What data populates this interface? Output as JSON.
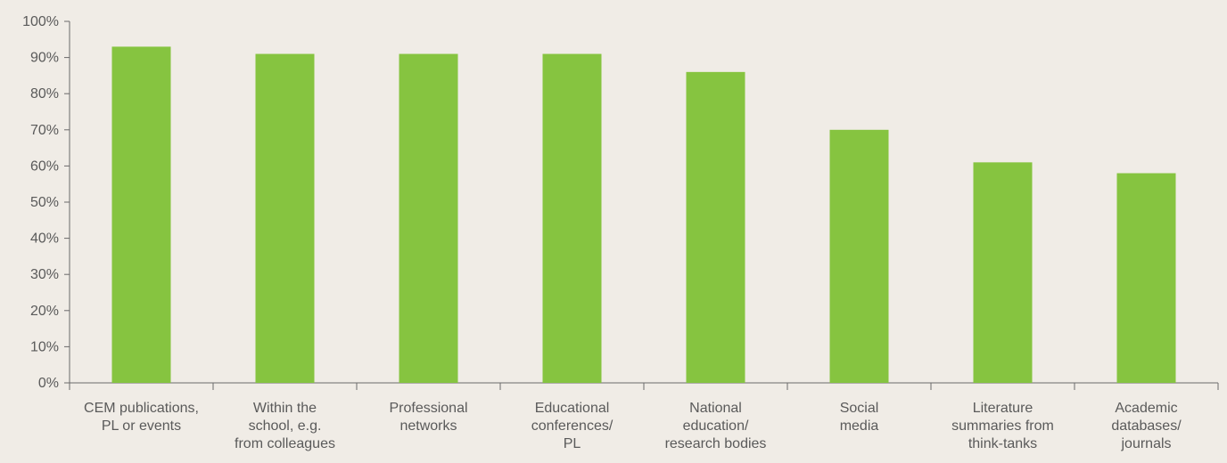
{
  "chart_data": {
    "type": "bar",
    "title": "",
    "xlabel": "",
    "ylabel": "",
    "ylim": [
      0,
      100
    ],
    "y_ticks": [
      "0%",
      "10%",
      "20%",
      "30%",
      "40%",
      "50%",
      "60%",
      "70%",
      "80%",
      "90%",
      "100%"
    ],
    "categories": [
      [
        "CEM publications,",
        "PL or events"
      ],
      [
        "Within the",
        "school, e.g.",
        "from colleagues"
      ],
      [
        "Professional",
        "networks"
      ],
      [
        "Educational",
        "conferences/",
        "PL"
      ],
      [
        "National",
        "education/",
        "research bodies"
      ],
      [
        "Social",
        "media"
      ],
      [
        "Literature",
        "summaries from",
        "think-tanks"
      ],
      [
        "Academic",
        "databases/",
        "journals"
      ]
    ],
    "values": [
      93,
      91,
      91,
      91,
      86,
      70,
      61,
      58
    ],
    "grid": false,
    "bar_color": "#86c440",
    "axis_color": "#6a6a6a",
    "text_color": "#5a5a5a"
  }
}
